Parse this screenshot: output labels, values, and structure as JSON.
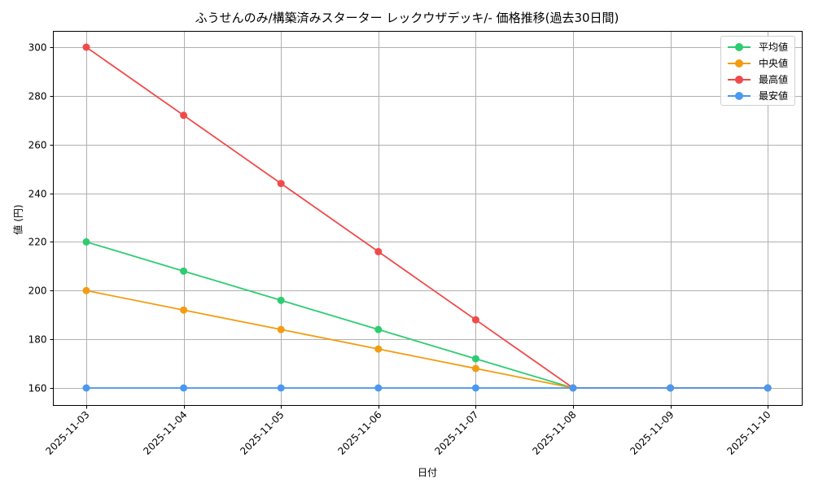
{
  "chart_data": {
    "type": "line",
    "title": "ふうせんのみ/構築済みスターター レックウザデッキ/- 価格推移(過去30日間)",
    "xlabel": "日付",
    "ylabel": "値 (円)",
    "categories": [
      "2025-11-03",
      "2025-11-04",
      "2025-11-05",
      "2025-11-06",
      "2025-11-07",
      "2025-11-08",
      "2025-11-09",
      "2025-11-10"
    ],
    "series": [
      {
        "name": "平均値",
        "color": "#2ecc71",
        "values": [
          220,
          208,
          196,
          184,
          172,
          160,
          160,
          160
        ]
      },
      {
        "name": "中央値",
        "color": "#f39c12",
        "values": [
          200,
          192,
          184,
          176,
          168,
          160,
          160,
          160
        ]
      },
      {
        "name": "最高値",
        "color": "#f04a4a",
        "values": [
          300,
          272,
          244,
          216,
          188,
          160,
          160,
          160
        ]
      },
      {
        "name": "最安値",
        "color": "#4a98f0",
        "values": [
          160,
          160,
          160,
          160,
          160,
          160,
          160,
          160
        ]
      }
    ],
    "yticks": [
      160,
      180,
      200,
      220,
      240,
      260,
      280,
      300
    ],
    "ylim": [
      153,
      307
    ],
    "grid": true,
    "legend_position": "upper right",
    "marker": "circle"
  },
  "legend": {
    "items": [
      {
        "label": "平均値",
        "color": "#2ecc71"
      },
      {
        "label": "中央値",
        "color": "#f39c12"
      },
      {
        "label": "最高値",
        "color": "#f04a4a"
      },
      {
        "label": "最安値",
        "color": "#4a98f0"
      }
    ]
  }
}
